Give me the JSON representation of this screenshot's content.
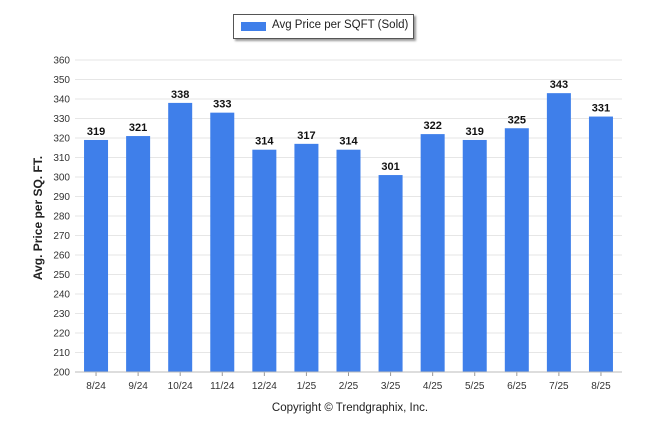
{
  "legend": {
    "label": "Avg Price per SQFT (Sold)"
  },
  "copyright": "Copyright © Trendgraphix, Inc.",
  "colors": {
    "bar": "#3f7fea",
    "grid": "#e6e6e6",
    "axis_text": "#333333"
  },
  "chart_data": {
    "type": "bar",
    "title": "",
    "xlabel": "",
    "ylabel": "Avg. Price per SQ. FT.",
    "categories": [
      "8/24",
      "9/24",
      "10/24",
      "11/24",
      "12/24",
      "1/25",
      "2/25",
      "3/25",
      "4/25",
      "5/25",
      "6/25",
      "7/25",
      "8/25"
    ],
    "series": [
      {
        "name": "Avg Price per SQFT (Sold)",
        "values": [
          319,
          321,
          338,
          333,
          314,
          317,
          314,
          301,
          322,
          319,
          325,
          343,
          331
        ]
      }
    ],
    "ylim": [
      200,
      360
    ],
    "yticks": [
      200,
      210,
      220,
      230,
      240,
      250,
      260,
      270,
      280,
      290,
      300,
      310,
      320,
      330,
      340,
      350,
      360
    ],
    "grid": true,
    "legend_position": "top-center",
    "data_labels": true
  }
}
